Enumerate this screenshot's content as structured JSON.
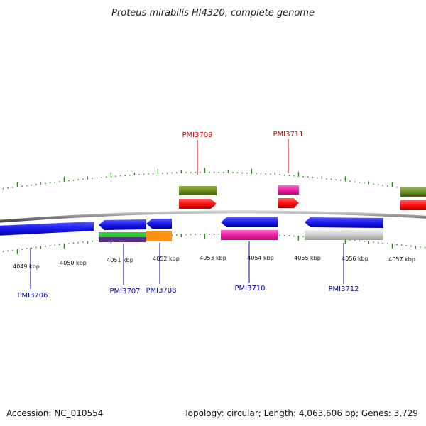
{
  "title": "Proteus mirabilis HI4320, complete genome",
  "footer": {
    "accession": "Accession: NC_010554",
    "summary": "Topology: circular; Length: 4,063,606 bp; Genes: 3,729"
  },
  "colors": {
    "backbone": "#8a8a8a",
    "ticks": "#2d8a1a",
    "label_red": "#cc0000",
    "label_blue": "#0000aa",
    "blue": "#1a1aee",
    "red": "#ff1010",
    "olive": "#6b8e23",
    "pink": "#ee1fa6",
    "green": "#33cc33",
    "purple": "#553388",
    "orange": "#ff9010",
    "gray": "#cccccc"
  },
  "tick_labels": [
    "4049 kbp",
    "4050 kbp",
    "4051 kbp",
    "4052 kbp",
    "4053 kbp",
    "4054 kbp",
    "4055 kbp",
    "4056 kbp",
    "4057 kbp"
  ],
  "gene_labels": [
    {
      "id": "PMI3706",
      "strand": "minus"
    },
    {
      "id": "PMI3707",
      "strand": "minus"
    },
    {
      "id": "PMI3708",
      "strand": "minus"
    },
    {
      "id": "PMI3709",
      "strand": "plus"
    },
    {
      "id": "PMI3710",
      "strand": "minus"
    },
    {
      "id": "PMI3711",
      "strand": "plus"
    },
    {
      "id": "PMI3712",
      "strand": "minus"
    }
  ]
}
